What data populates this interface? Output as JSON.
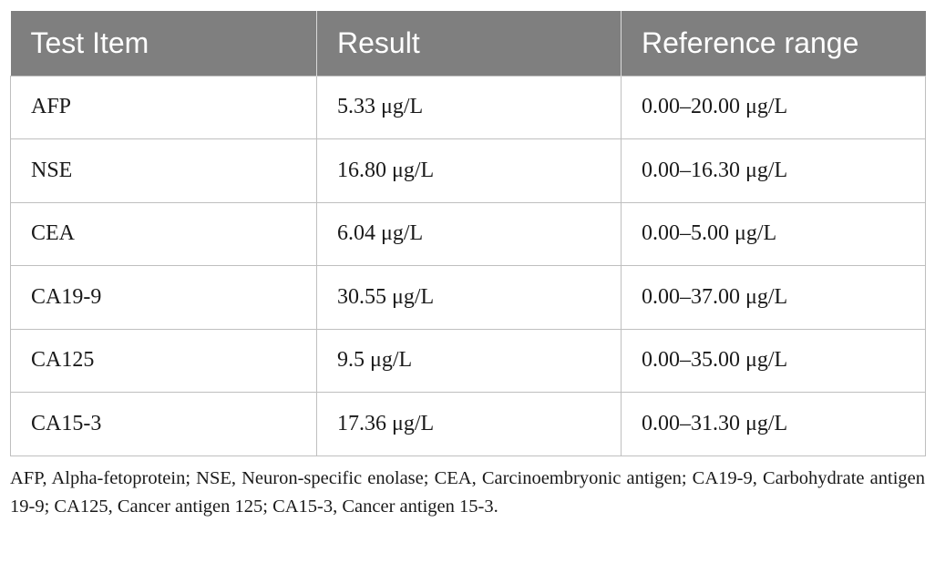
{
  "table": {
    "headers": [
      "Test Item",
      "Result",
      "Reference range"
    ],
    "rows": [
      [
        "AFP",
        "5.33 μg/L",
        "0.00–20.00 μg/L"
      ],
      [
        "NSE",
        "16.80 μg/L",
        "0.00–16.30 μg/L"
      ],
      [
        "CEA",
        "6.04 μg/L",
        "0.00–5.00 μg/L"
      ],
      [
        "CA19-9",
        "30.55 μg/L",
        "0.00–37.00 μg/L"
      ],
      [
        "CA125",
        "9.5 μg/L",
        "0.00–35.00 μg/L"
      ],
      [
        "CA15-3",
        "17.36 μg/L",
        "0.00–31.30 μg/L"
      ]
    ]
  },
  "footnote": "AFP, Alpha-fetoprotein; NSE, Neuron-specific enolase; CEA, Carcinoembryonic antigen; CA19-9, Carbohydrate antigen 19-9; CA125, Cancer antigen 125; CA15-3, Cancer antigen 15-3.",
  "colors": {
    "header_background": "#7f7f7f",
    "header_text": "#ffffff",
    "grid_lines": "#bfbfbf"
  }
}
